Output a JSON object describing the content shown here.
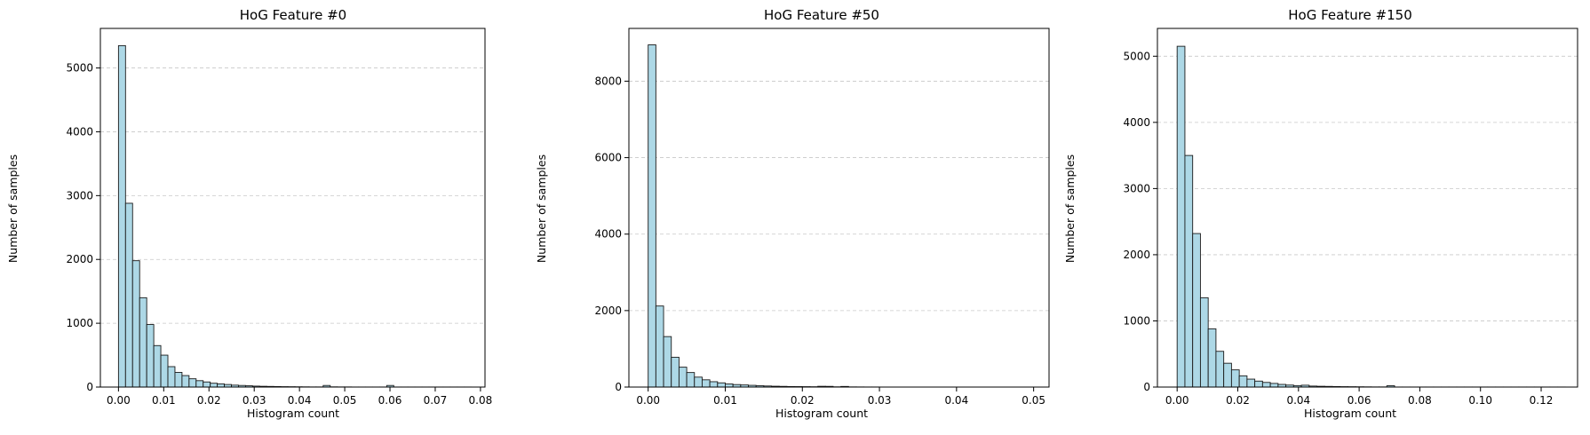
{
  "colors": {
    "bar_fill": "#add8e6",
    "bar_edge": "#1a1a1a",
    "grid": "#c8c8c8",
    "axis": "#000000"
  },
  "chart_data": [
    {
      "type": "bar",
      "title": "HoG Feature #0",
      "xlabel": "Histogram count",
      "ylabel": "Number of samples",
      "xlim": [
        -0.004,
        0.081
      ],
      "ylim": [
        0,
        5620
      ],
      "xticks": [
        0.0,
        0.01,
        0.02,
        0.03,
        0.04,
        0.05,
        0.06,
        0.07,
        0.08
      ],
      "xtick_labels": [
        "0.00",
        "0.01",
        "0.02",
        "0.03",
        "0.04",
        "0.05",
        "0.06",
        "0.07",
        "0.08"
      ],
      "yticks": [
        0,
        1000,
        2000,
        3000,
        4000,
        5000
      ],
      "ytick_labels": [
        "0",
        "1000",
        "2000",
        "3000",
        "4000",
        "5000"
      ],
      "grid": "y-dashed",
      "bin_start": 0.0,
      "bin_width": 0.00156,
      "values": [
        5350,
        2880,
        1980,
        1400,
        980,
        650,
        500,
        320,
        230,
        180,
        130,
        100,
        80,
        60,
        50,
        40,
        30,
        25,
        20,
        15,
        12,
        10,
        8,
        6,
        5,
        4,
        3,
        2,
        2,
        25,
        3,
        2,
        2,
        1,
        1,
        1,
        1,
        1,
        25,
        1,
        1,
        1,
        1,
        1,
        1,
        1,
        1,
        1,
        1,
        1
      ]
    },
    {
      "type": "bar",
      "title": "HoG Feature #50",
      "xlabel": "Histogram count",
      "ylabel": "Number of samples",
      "xlim": [
        -0.0025,
        0.052
      ],
      "ylim": [
        0,
        9380
      ],
      "xticks": [
        0.0,
        0.01,
        0.02,
        0.03,
        0.04,
        0.05
      ],
      "xtick_labels": [
        "0.00",
        "0.01",
        "0.02",
        "0.03",
        "0.04",
        "0.05"
      ],
      "yticks": [
        0,
        2000,
        4000,
        6000,
        8000
      ],
      "ytick_labels": [
        "0",
        "2000",
        "4000",
        "6000",
        "8000"
      ],
      "grid": "y-dashed",
      "bin_start": 0.0,
      "bin_width": 0.001,
      "values": [
        8950,
        2120,
        1320,
        780,
        520,
        380,
        260,
        190,
        140,
        110,
        80,
        65,
        55,
        45,
        35,
        28,
        22,
        18,
        14,
        12,
        10,
        8,
        20,
        18,
        6,
        16,
        4,
        3,
        2,
        2,
        1,
        1,
        1,
        1,
        1,
        1,
        1,
        1,
        1,
        1,
        1,
        1,
        1,
        1,
        1,
        1,
        1,
        1,
        1,
        1
      ]
    },
    {
      "type": "bar",
      "title": "HoG Feature #150",
      "xlabel": "Histogram count",
      "ylabel": "Number of samples",
      "xlim": [
        -0.0065,
        0.132
      ],
      "ylim": [
        0,
        5420
      ],
      "xticks": [
        0.0,
        0.02,
        0.04,
        0.06,
        0.08,
        0.1,
        0.12
      ],
      "xtick_labels": [
        "0.00",
        "0.02",
        "0.04",
        "0.06",
        "0.08",
        "0.10",
        "0.12"
      ],
      "yticks": [
        0,
        1000,
        2000,
        3000,
        4000,
        5000
      ],
      "ytick_labels": [
        "0",
        "1000",
        "2000",
        "3000",
        "4000",
        "5000"
      ],
      "grid": "y-dashed",
      "bin_start": 0.0,
      "bin_width": 0.00256,
      "values": [
        5150,
        3500,
        2320,
        1350,
        880,
        540,
        360,
        260,
        170,
        120,
        90,
        70,
        55,
        40,
        30,
        22,
        28,
        15,
        12,
        10,
        8,
        6,
        5,
        4,
        3,
        2,
        2,
        20,
        1,
        1,
        1,
        1,
        1,
        1,
        1,
        1,
        1,
        1,
        1,
        1,
        1,
        1,
        1,
        1,
        1,
        1,
        1,
        1,
        1,
        1
      ]
    }
  ]
}
